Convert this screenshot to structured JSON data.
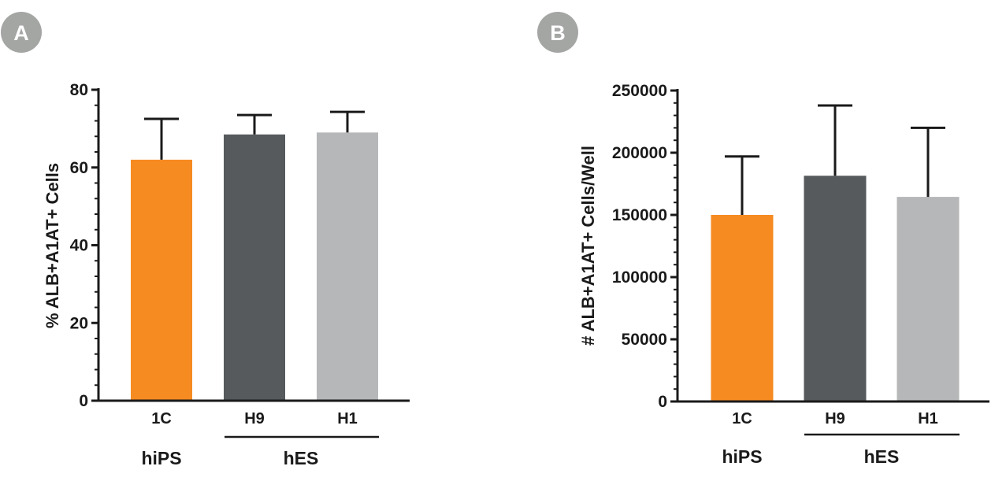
{
  "chart_data": [
    {
      "panel_label": "A",
      "type": "bar",
      "categories": [
        "1C",
        "H9",
        "H1"
      ],
      "values": [
        62,
        68.5,
        69
      ],
      "errors": [
        10.5,
        5,
        5.3
      ],
      "colors": [
        "#f68b22",
        "#565a5d",
        "#b5b7b9"
      ],
      "ylabel": "% ALB+A1AT+  Cells",
      "ylim": [
        0,
        80
      ],
      "yticks": [
        0,
        20,
        40,
        60,
        80
      ],
      "ytick_labels": [
        "0",
        "20",
        "40",
        "60",
        "80"
      ],
      "groups": [
        {
          "label": "hiPS",
          "categories": [
            "1C"
          ],
          "underline": false
        },
        {
          "label": "hES",
          "categories": [
            "H9",
            "H1"
          ],
          "underline": true
        }
      ]
    },
    {
      "panel_label": "B",
      "type": "bar",
      "categories": [
        "1C",
        "H9",
        "H1"
      ],
      "values": [
        150000,
        181500,
        164500
      ],
      "errors": [
        47000,
        56500,
        55500
      ],
      "colors": [
        "#f68b22",
        "#565a5d",
        "#b5b7b9"
      ],
      "ylabel": "# ALB+A1AT+  Cells/Well",
      "ylim": [
        0,
        250000
      ],
      "yticks": [
        0,
        50000,
        100000,
        150000,
        200000,
        250000
      ],
      "ytick_labels": [
        "0",
        "50000",
        "100000",
        "150000",
        "200000",
        "250000"
      ],
      "groups": [
        {
          "label": "hiPS",
          "categories": [
            "1C"
          ],
          "underline": false
        },
        {
          "label": "hES",
          "categories": [
            "H9",
            "H1"
          ],
          "underline": true
        }
      ]
    }
  ]
}
